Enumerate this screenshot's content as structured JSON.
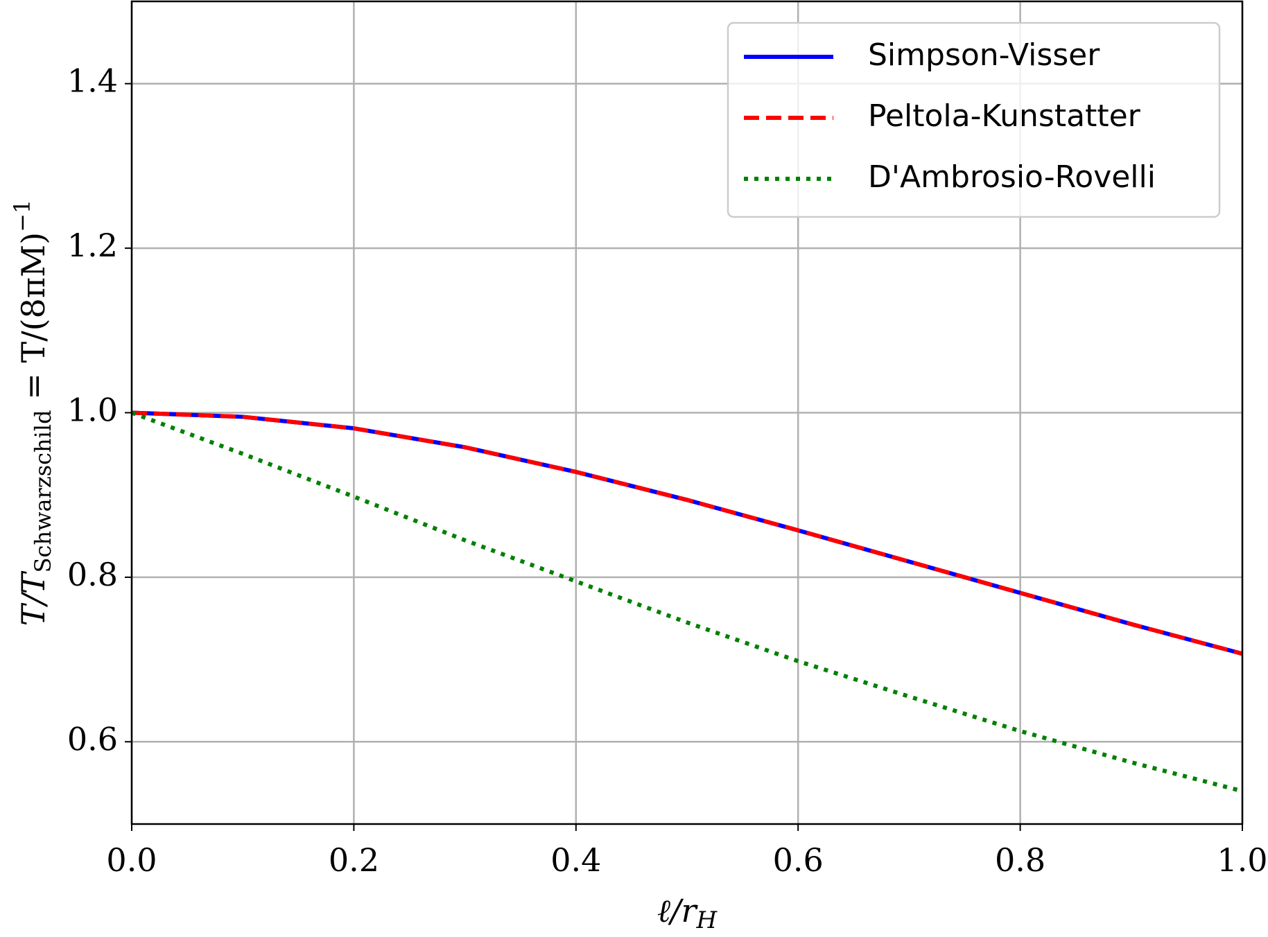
{
  "chart_data": {
    "type": "line",
    "x_label": [
      "ℓ/r",
      "H"
    ],
    "y_label": [
      "T/T",
      "Schwarzschild",
      " = T/(8πM)",
      "−1"
    ],
    "x": [
      0,
      0.1,
      0.2,
      0.3,
      0.4,
      0.5,
      0.6,
      0.7,
      0.8,
      0.9,
      1.0
    ],
    "series": [
      {
        "name": "Simpson-Visser",
        "color": "#0000ff",
        "style": "solid",
        "values": [
          1.0,
          0.995,
          0.981,
          0.958,
          0.928,
          0.894,
          0.857,
          0.819,
          0.781,
          0.743,
          0.707
        ]
      },
      {
        "name": "Peltola-Kunstatter",
        "color": "#ff0000",
        "style": "dashed",
        "values": [
          1.0,
          0.995,
          0.981,
          0.958,
          0.928,
          0.894,
          0.857,
          0.819,
          0.781,
          0.743,
          0.707
        ]
      },
      {
        "name": "D'Ambrosio-Rovelli",
        "color": "#008000",
        "style": "dotted",
        "values": [
          1.0,
          0.95,
          0.898,
          0.845,
          0.795,
          0.745,
          0.698,
          0.655,
          0.613,
          0.575,
          0.54
        ]
      }
    ],
    "xlim": [
      0,
      1
    ],
    "ylim": [
      0.5,
      1.5
    ],
    "xticks": [
      {
        "value": 0,
        "label": "0.0"
      },
      0.2,
      0.4,
      0.6,
      0.8,
      {
        "value": 1,
        "label": "1.0"
      }
    ],
    "yticks": [
      0.6,
      0.8,
      {
        "value": 1,
        "label": "1.0"
      },
      1.2,
      1.4
    ],
    "grid": true,
    "legend": "upper right"
  }
}
